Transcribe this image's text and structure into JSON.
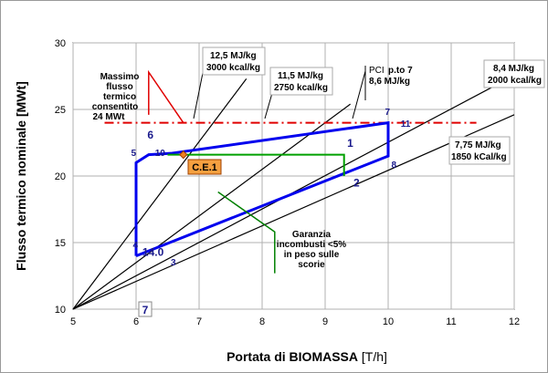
{
  "chart_data": {
    "type": "line",
    "xlabel_bold": "Portata di BIOMASSA",
    "xlabel_unit": " [T/h]",
    "ylabel": "Flusso termico nominale [MWt]",
    "xlim": [
      5,
      12
    ],
    "ylim": [
      10,
      30
    ],
    "x_ticks": [
      "5",
      "6",
      "7",
      "8",
      "9",
      "10",
      "11",
      "12"
    ],
    "y_ticks": [
      "10",
      "15",
      "20",
      "25",
      "30"
    ],
    "grid": true,
    "pci_lines": [
      {
        "x": [
          5,
          7.75
        ],
        "y": [
          10,
          27.3
        ]
      },
      {
        "x": [
          5,
          9.4
        ],
        "y": [
          10,
          25.4
        ]
      },
      {
        "x": [
          5,
          11.9
        ],
        "y": [
          10,
          27.3
        ]
      },
      {
        "x": [
          5,
          12
        ],
        "y": [
          10,
          24.6
        ]
      }
    ],
    "limit_line": {
      "x": [
        5.5,
        11.4
      ],
      "y": [
        24,
        24
      ]
    },
    "operating_envelope": {
      "x": [
        6.0,
        6.0,
        6.2,
        6.55,
        10.0,
        10.0,
        6.0
      ],
      "y": [
        14.0,
        21.0,
        21.6,
        21.7,
        24.0,
        21.5,
        14.0
      ]
    },
    "green_curve": {
      "x": [
        6.5,
        9.3,
        9.3
      ],
      "y": [
        21.6,
        21.6,
        20.0
      ]
    },
    "green_pointer": {
      "x": [
        7.3,
        8.2,
        8.2
      ],
      "y": [
        18.8,
        15.8,
        12.7
      ]
    },
    "red_pointer": {
      "x": [
        6.2,
        6.2,
        6.2,
        6.75
      ],
      "y": [
        24.6,
        27.8,
        27.8,
        24.0
      ]
    },
    "ce1_point": {
      "x": 6.75,
      "y": 21.6
    },
    "point_labels": [
      {
        "t": "1",
        "x": 9.35,
        "y": 22.2,
        "cls": "big"
      },
      {
        "t": "2",
        "x": 9.45,
        "y": 19.2,
        "cls": "big"
      },
      {
        "t": "3",
        "x": 6.55,
        "y": 13.3,
        "cls": "pt"
      },
      {
        "t": "4",
        "x": 5.95,
        "y": 14.6,
        "cls": "pt"
      },
      {
        "t": "5",
        "x": 5.92,
        "y": 21.5,
        "cls": "pt"
      },
      {
        "t": "6",
        "x": 6.18,
        "y": 22.8,
        "cls": "big"
      },
      {
        "t": "7",
        "x": 9.95,
        "y": 24.6,
        "cls": "pt"
      },
      {
        "t": "8",
        "x": 10.05,
        "y": 20.6,
        "cls": "pt"
      },
      {
        "t": "10",
        "x": 6.3,
        "y": 21.5,
        "cls": "pt"
      },
      {
        "t": "11",
        "x": 10.2,
        "y": 23.7,
        "cls": "pt"
      },
      {
        "t": "14.0",
        "x": 6.1,
        "y": 14.0,
        "cls": "big"
      }
    ],
    "ce1_label": "C.E.1",
    "box_7": "7",
    "annotations": {
      "massimo_lines": [
        "Massimo",
        "flusso",
        "termico",
        "consentito",
        "24 MWt"
      ],
      "garanzia_lines": [
        "Garanzia",
        "incombusti <5%",
        "in peso sulle",
        "scorie"
      ],
      "pci_title": "PCI",
      "pci_title2": "p.to 7",
      "pci_val": "8,6 MJ/kg",
      "box1_l1": "12,5 MJ/kg",
      "box1_l2": "3000 kcal/kg",
      "box2_l1": "11,5 MJ/kg",
      "box2_l2": "2750 kcal/kg",
      "box3_l1": "8,4 MJ/kg",
      "box3_l2": "2000 kcal/kg",
      "box4_l1": "7,75 MJ/kg",
      "box4_l2": "1850 kCal/kg"
    }
  }
}
